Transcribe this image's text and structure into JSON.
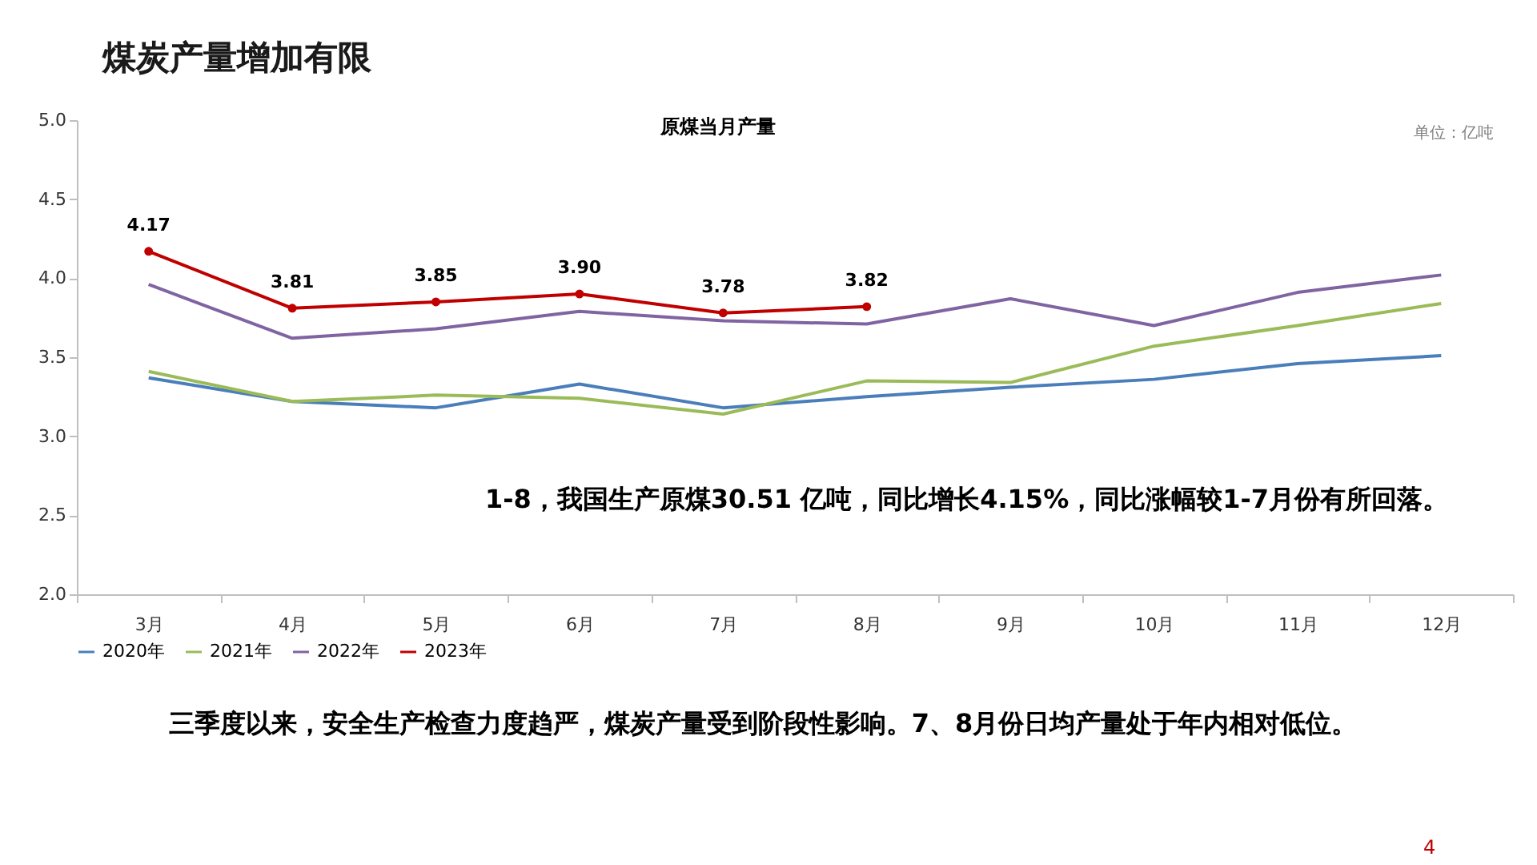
{
  "chart_data": {
    "type": "line",
    "title": "煤炭产量增加有限",
    "subtitle": "原煤当月产量",
    "annotations": [
      "单位：亿吨",
      "1-8，我国生产原煤30.51 亿吨，同比增长4.15%，同比涨幅较1-7月份有所回落。",
      "三季度以来，安全生产检查力度趋严，煤炭产量受到阶段性影响。7、8月份日均产量处于年内相对低位。",
      "4"
    ],
    "categories": [
      "3月",
      "4月",
      "5月",
      "6月",
      "7月",
      "8月",
      "9月",
      "10月",
      "11月",
      "12月"
    ],
    "series": [
      {
        "name": "2020年",
        "color": "#4a7ebb",
        "marker": "none",
        "values": [
          3.37,
          3.22,
          3.18,
          3.33,
          3.18,
          3.25,
          3.31,
          3.36,
          3.46,
          3.51
        ]
      },
      {
        "name": "2021年",
        "color": "#9bbb59",
        "marker": "none",
        "values": [
          3.41,
          3.22,
          3.26,
          3.24,
          3.14,
          3.35,
          3.34,
          3.57,
          3.7,
          3.84
        ]
      },
      {
        "name": "2022年",
        "color": "#8064a2",
        "marker": "none",
        "values": [
          3.96,
          3.62,
          3.68,
          3.79,
          3.73,
          3.71,
          3.87,
          3.7,
          3.91,
          4.02
        ]
      },
      {
        "name": "2023年",
        "color": "#c00000",
        "marker": "circle",
        "values": [
          4.17,
          3.81,
          3.85,
          3.9,
          3.78,
          3.82,
          null,
          null,
          null,
          null
        ],
        "value_labels": [
          "4.17",
          "3.81",
          "3.85",
          "3.90",
          "3.78",
          "3.82",
          null,
          null,
          null,
          null
        ]
      }
    ],
    "ylim": [
      2.0,
      5.0
    ],
    "yticks": [
      {
        "value": 2.0,
        "label": "2.0"
      },
      {
        "value": 2.5,
        "label": "2.5"
      },
      {
        "value": 3.0,
        "label": "3.0"
      },
      {
        "value": 3.5,
        "label": "3.5"
      },
      {
        "value": 4.0,
        "label": "4.0"
      },
      {
        "value": 4.5,
        "label": "4.5"
      },
      {
        "value": 5.0,
        "label": "5.0"
      }
    ],
    "grid": false,
    "legend": "bottom",
    "line_style": "solid"
  }
}
